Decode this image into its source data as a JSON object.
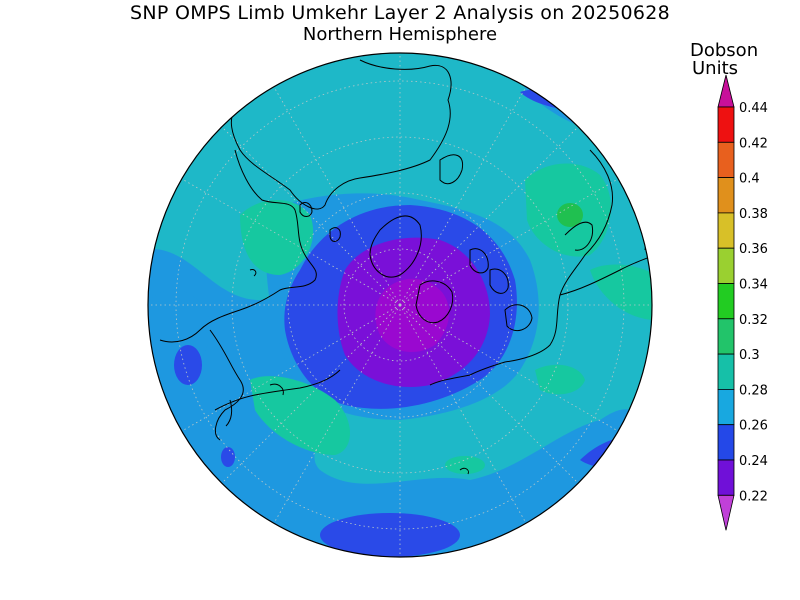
{
  "title": "SNP OMPS Limb Umkehr Layer 2 Analysis on 20250628",
  "subtitle": "Northern Hemisphere",
  "colorbar": {
    "unit_line1": "Dobson",
    "unit_line2": "Units",
    "ticks": [
      "0.44",
      "0.42",
      "0.4",
      "0.38",
      "0.36",
      "0.34",
      "0.32",
      "0.3",
      "0.28",
      "0.26",
      "0.24",
      "0.22"
    ],
    "colors": [
      "#ee1111",
      "#e8601e",
      "#e0901c",
      "#d8c028",
      "#9ad030",
      "#22cc22",
      "#22c46a",
      "#16c0a8",
      "#18a8e0",
      "#2448e8",
      "#7010d8"
    ],
    "over_color": "#c8109a",
    "under_color": "#c040d8"
  },
  "map": {
    "projection": "north-polar-stereographic",
    "field": "ozone layer 2 column",
    "colors": {
      "ocean_base": "#1eb8c8",
      "blue_band": "#1e98e0",
      "low": "#2a4ae8",
      "lower": "#7a10d8",
      "lowest": "#9a08d0",
      "high": "#16c8a0",
      "higher": "#20c050"
    }
  }
}
